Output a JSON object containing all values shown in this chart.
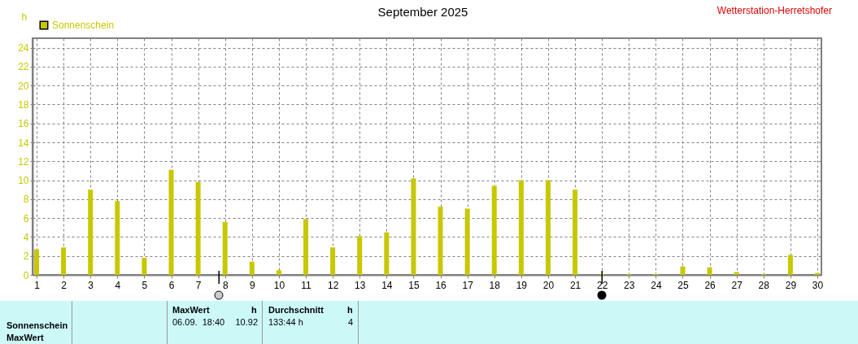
{
  "chart_data": {
    "type": "bar",
    "title": "September 2025",
    "ylabel": "h",
    "x": [
      1,
      2,
      3,
      4,
      5,
      6,
      7,
      8,
      9,
      10,
      11,
      12,
      13,
      14,
      15,
      16,
      17,
      18,
      19,
      20,
      21,
      22,
      23,
      24,
      25,
      26,
      27,
      28,
      29,
      30
    ],
    "series": [
      {
        "name": "Sonnenschein",
        "color": "#c8c800",
        "values": [
          2.7,
          2.9,
          9.0,
          7.8,
          1.8,
          11.1,
          9.8,
          5.6,
          1.4,
          0.5,
          5.9,
          2.9,
          4.1,
          4.5,
          10.2,
          7.2,
          7.0,
          9.4,
          10.0,
          10.0,
          9.0,
          0.1,
          0.1,
          0.1,
          0.9,
          0.8,
          0.3,
          0.1,
          2.1,
          0.2
        ]
      }
    ],
    "xlim": [
      1,
      30
    ],
    "xticks": [
      1,
      2,
      3,
      4,
      5,
      6,
      7,
      8,
      9,
      10,
      11,
      12,
      13,
      14,
      15,
      16,
      17,
      18,
      19,
      20,
      21,
      22,
      23,
      24,
      25,
      26,
      27,
      28,
      29,
      30
    ],
    "ylim": [
      0,
      25
    ],
    "yticks": [
      0,
      2,
      4,
      6,
      8,
      10,
      12,
      14,
      16,
      18,
      20,
      22,
      24
    ],
    "grid": true,
    "legend": "top left",
    "annotations": [
      "Wetterstation-Herretshofer",
      "Sonnenschein",
      "MaxWert",
      "MaxWert",
      "h",
      "06.09.  18:40",
      "10.92",
      "Durchschnitt",
      "h",
      "133:44 h",
      "4"
    ]
  }
}
